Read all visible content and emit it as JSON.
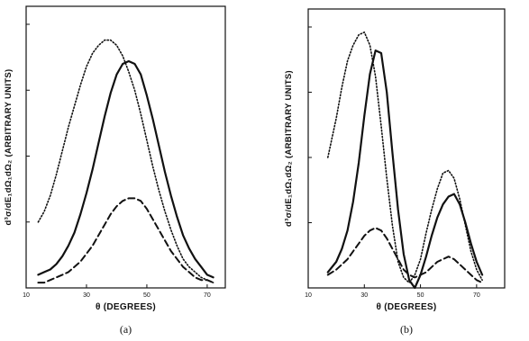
{
  "chart_data": [
    {
      "panel": "(a)",
      "type": "line",
      "xlabel": "θ (DEGREES)",
      "ylabel": "d³σ/dE₁dΩ₁dΩ₂ (ARBITRARY UNITS)",
      "xlim": [
        10,
        76
      ],
      "ylim": [
        0,
        1.0
      ],
      "xticks": [
        {
          "value": 10,
          "label": "10"
        },
        {
          "value": 30,
          "label": "30"
        },
        {
          "value": 50,
          "label": "50"
        },
        {
          "value": 70,
          "label": "70"
        }
      ],
      "yticks": [
        0.25,
        0.5,
        0.75,
        1.0
      ],
      "series": [
        {
          "style": "dotted",
          "x": [
            14,
            16,
            18,
            20,
            22,
            24,
            26,
            28,
            30,
            32,
            34,
            36,
            38,
            40,
            42,
            44,
            46,
            48,
            50,
            52,
            54,
            56,
            58,
            60,
            62,
            64,
            66,
            68,
            70,
            72
          ],
          "y": [
            0.25,
            0.29,
            0.35,
            0.43,
            0.52,
            0.61,
            0.69,
            0.77,
            0.84,
            0.89,
            0.92,
            0.94,
            0.94,
            0.92,
            0.88,
            0.82,
            0.75,
            0.66,
            0.56,
            0.46,
            0.37,
            0.29,
            0.22,
            0.16,
            0.11,
            0.08,
            0.06,
            0.04,
            0.03,
            0.02
          ]
        },
        {
          "style": "solid",
          "x": [
            14,
            16,
            18,
            20,
            22,
            24,
            26,
            28,
            30,
            32,
            34,
            36,
            38,
            40,
            42,
            44,
            46,
            48,
            50,
            52,
            54,
            56,
            58,
            60,
            62,
            64,
            66,
            68,
            70,
            72
          ],
          "y": [
            0.05,
            0.06,
            0.07,
            0.09,
            0.12,
            0.16,
            0.21,
            0.28,
            0.36,
            0.45,
            0.55,
            0.65,
            0.74,
            0.81,
            0.85,
            0.86,
            0.85,
            0.81,
            0.73,
            0.64,
            0.54,
            0.44,
            0.35,
            0.27,
            0.2,
            0.15,
            0.11,
            0.08,
            0.05,
            0.04
          ]
        },
        {
          "style": "dashed",
          "x": [
            14,
            16,
            18,
            20,
            22,
            24,
            26,
            28,
            30,
            32,
            34,
            36,
            38,
            40,
            42,
            44,
            46,
            48,
            50,
            52,
            54,
            56,
            58,
            60,
            62,
            64,
            66,
            68,
            70,
            72
          ],
          "y": [
            0.02,
            0.02,
            0.03,
            0.04,
            0.05,
            0.06,
            0.08,
            0.1,
            0.13,
            0.16,
            0.2,
            0.24,
            0.28,
            0.31,
            0.33,
            0.34,
            0.34,
            0.33,
            0.3,
            0.26,
            0.22,
            0.18,
            0.14,
            0.11,
            0.08,
            0.06,
            0.04,
            0.03,
            0.03,
            0.02
          ]
        }
      ]
    },
    {
      "panel": "(b)",
      "type": "line",
      "xlabel": "θ (DEGREES)",
      "ylabel": "d³σ/dE₁dΩ₁dΩ₂ (ARBITRARY UNITS)",
      "xlim": [
        10,
        80
      ],
      "ylim": [
        0,
        1.0
      ],
      "xticks": [
        {
          "value": 10,
          "label": "10"
        },
        {
          "value": 30,
          "label": "30"
        },
        {
          "value": 50,
          "label": "50"
        },
        {
          "value": 70,
          "label": "70"
        }
      ],
      "yticks": [
        0.25,
        0.5,
        0.75,
        1.0
      ],
      "series": [
        {
          "style": "dotted",
          "x": [
            17,
            20,
            22,
            24,
            26,
            28,
            30,
            32,
            34,
            36,
            38,
            40,
            42,
            44,
            46,
            48,
            50,
            52,
            54,
            56,
            58,
            60,
            62,
            64,
            66,
            68,
            70,
            72
          ],
          "y": [
            0.5,
            0.65,
            0.77,
            0.87,
            0.93,
            0.97,
            0.98,
            0.93,
            0.81,
            0.62,
            0.42,
            0.24,
            0.1,
            0.04,
            0.02,
            0.05,
            0.11,
            0.21,
            0.3,
            0.38,
            0.44,
            0.45,
            0.42,
            0.34,
            0.24,
            0.14,
            0.07,
            0.03
          ]
        },
        {
          "style": "solid",
          "x": [
            17,
            20,
            22,
            24,
            26,
            28,
            30,
            32,
            34,
            36,
            38,
            40,
            42,
            44,
            46,
            48,
            50,
            52,
            54,
            56,
            58,
            60,
            62,
            64,
            66,
            68,
            70,
            72
          ],
          "y": [
            0.06,
            0.1,
            0.15,
            0.22,
            0.33,
            0.48,
            0.66,
            0.82,
            0.91,
            0.9,
            0.75,
            0.52,
            0.3,
            0.13,
            0.03,
            0.0,
            0.05,
            0.12,
            0.2,
            0.27,
            0.32,
            0.35,
            0.36,
            0.32,
            0.25,
            0.17,
            0.1,
            0.05
          ]
        },
        {
          "style": "dashed",
          "x": [
            17,
            20,
            22,
            24,
            26,
            28,
            30,
            32,
            34,
            36,
            38,
            40,
            42,
            44,
            46,
            48,
            50,
            52,
            54,
            56,
            58,
            60,
            62,
            64,
            66,
            68,
            70,
            72
          ],
          "y": [
            0.05,
            0.07,
            0.09,
            0.11,
            0.14,
            0.17,
            0.2,
            0.22,
            0.23,
            0.22,
            0.19,
            0.15,
            0.11,
            0.07,
            0.05,
            0.04,
            0.05,
            0.06,
            0.08,
            0.1,
            0.11,
            0.12,
            0.11,
            0.09,
            0.07,
            0.05,
            0.03,
            0.02
          ]
        }
      ]
    }
  ]
}
